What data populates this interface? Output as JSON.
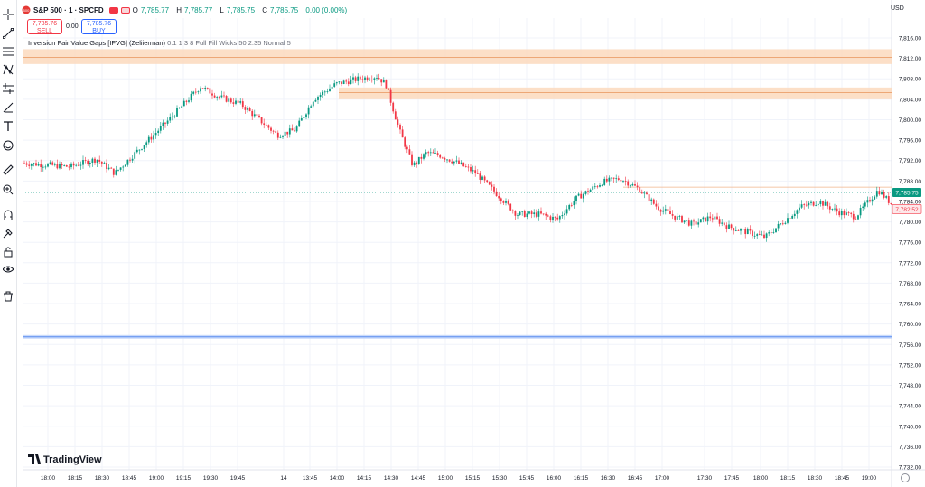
{
  "header": {
    "symbol": "S&P 500 · 1 · SPCFD",
    "open_label": "O",
    "open": "7,785.77",
    "high_label": "H",
    "high": "7,785.77",
    "low_label": "L",
    "low": "7,785.75",
    "close_label": "C",
    "close": "7,785.75",
    "change": "0.00 (0.00%)",
    "sell_price": "7,785.76",
    "sell_label": "SELL",
    "spread": "0.00",
    "buy_price": "7,785.76",
    "buy_label": "BUY",
    "indicator_name": "Inversion Fair Value Gaps [IFVG] (Zeliierman)",
    "indicator_params": "0.1 1 3 8 Full Fill Wicks 50 2.35 Normal 5",
    "currency": "USD"
  },
  "toolbar": [
    "crosshair-icon",
    "trendline-icon",
    "fib-icon",
    "pattern-icon",
    "forecast-icon",
    "brush-icon",
    "text-icon",
    "emoji-icon",
    "ruler-icon",
    "zoom-icon",
    "magnet-icon",
    "lock-drawing-icon",
    "lock-icon",
    "eye-icon",
    "trash-icon"
  ],
  "colors": {
    "up": "#089981",
    "down": "#f23645",
    "zone": "#f7a05a",
    "blue_line": "#5b8def"
  },
  "chart_data": {
    "type": "candlestick",
    "y_axis": {
      "min": 7732,
      "max": 7816,
      "ticks": [
        "7,816.00",
        "7,812.00",
        "7,808.00",
        "7,804.00",
        "7,800.00",
        "7,796.00",
        "7,792.00",
        "7,788.00",
        "7,784.00",
        "7,780.00",
        "7,776.00",
        "7,772.00",
        "7,768.00",
        "7,764.00",
        "7,760.00",
        "7,756.00",
        "7,752.00",
        "7,748.00",
        "7,744.00",
        "7,740.00",
        "7,736.00",
        "7,732.00"
      ]
    },
    "x_axis": {
      "labels": [
        "18:00",
        "18:15",
        "18:30",
        "18:45",
        "19:00",
        "19:15",
        "19:30",
        "19:45",
        "14",
        "13:45",
        "14:00",
        "14:15",
        "14:30",
        "14:45",
        "15:00",
        "15:15",
        "15:30",
        "15:45",
        "16:00",
        "16:15",
        "16:30",
        "16:45",
        "17:00",
        "17:30",
        "17:45",
        "18:00",
        "18:15",
        "18:30",
        "18:45",
        "19:00"
      ]
    },
    "last_price": "7,785.75",
    "last_price_value": 7785.75,
    "secondary_price": "7,782.52",
    "secondary_price_value": 7782.52,
    "zones": [
      {
        "top": 7813.8,
        "bottom": 7810.9,
        "mid": 7812.2
      },
      {
        "top": 7806.3,
        "bottom": 7804.0,
        "mid": 7805.3
      }
    ],
    "horizontal_lines": [
      {
        "price": 7757.5,
        "color": "blue"
      },
      {
        "price": 7786.8,
        "color": "orange"
      }
    ],
    "path_points": [
      [
        0,
        7791.5
      ],
      [
        50,
        7790.8
      ],
      [
        80,
        7792.3
      ],
      [
        100,
        7789.5
      ],
      [
        120,
        7793
      ],
      [
        160,
        7800
      ],
      [
        195,
        7806.5
      ],
      [
        215,
        7804.5
      ],
      [
        240,
        7803
      ],
      [
        260,
        7800
      ],
      [
        280,
        7797
      ],
      [
        300,
        7798
      ],
      [
        320,
        7804
      ],
      [
        345,
        7807
      ],
      [
        370,
        7808
      ],
      [
        390,
        7808.5
      ],
      [
        400,
        7807
      ],
      [
        415,
        7798
      ],
      [
        430,
        7791
      ],
      [
        445,
        7793.5
      ],
      [
        460,
        7793
      ],
      [
        480,
        7791.5
      ],
      [
        500,
        7789.5
      ],
      [
        520,
        7786
      ],
      [
        545,
        7781.5
      ],
      [
        570,
        7781.5
      ],
      [
        590,
        7780.5
      ],
      [
        610,
        7784.5
      ],
      [
        640,
        7787.8
      ],
      [
        660,
        7788.5
      ],
      [
        680,
        7786.5
      ],
      [
        700,
        7783
      ],
      [
        720,
        7781
      ],
      [
        740,
        7779.5
      ],
      [
        760,
        7781
      ],
      [
        780,
        7779
      ],
      [
        800,
        7778
      ],
      [
        820,
        7777
      ],
      [
        840,
        7780
      ],
      [
        860,
        7783
      ],
      [
        880,
        7784
      ],
      [
        900,
        7782
      ],
      [
        920,
        7781
      ],
      [
        945,
        7786.2
      ],
      [
        960,
        7783.5
      ],
      [
        975,
        7782.5
      ]
    ]
  },
  "watermark": "TradingView"
}
